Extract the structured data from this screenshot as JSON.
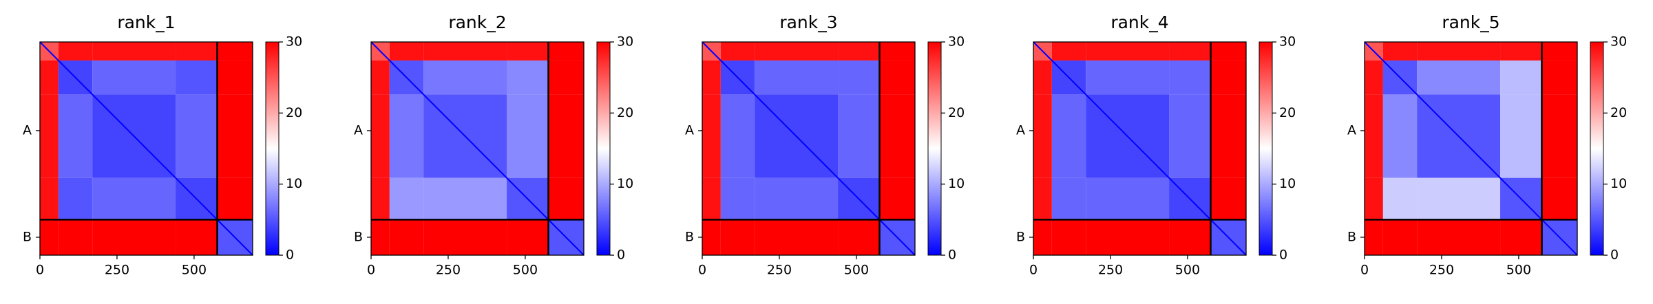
{
  "chart_data": [
    {
      "type": "heatmap",
      "title": "rank_1",
      "xlim": [
        0,
        690
      ],
      "xticks": [
        0,
        250,
        500
      ],
      "yticks": [
        {
          "value": 287,
          "label": "A"
        },
        {
          "value": 632,
          "label": "B"
        }
      ],
      "chain_breaks": [
        575
      ],
      "bins": [
        0,
        60,
        170,
        440,
        575,
        690
      ],
      "values": [
        [
          25,
          29,
          29,
          29,
          30
        ],
        [
          29,
          4,
          6,
          5,
          30
        ],
        [
          29,
          6,
          4,
          6,
          30
        ],
        [
          29,
          5,
          6,
          4,
          30
        ],
        [
          30,
          30,
          30,
          30,
          5
        ]
      ],
      "clim": [
        0,
        30
      ],
      "cticks": [
        0,
        10,
        20,
        30
      ]
    },
    {
      "type": "heatmap",
      "title": "rank_2",
      "xlim": [
        0,
        690
      ],
      "xticks": [
        0,
        250,
        500
      ],
      "yticks": [
        {
          "value": 287,
          "label": "A"
        },
        {
          "value": 632,
          "label": "B"
        }
      ],
      "chain_breaks": [
        575
      ],
      "bins": [
        0,
        60,
        170,
        440,
        575,
        690
      ],
      "values": [
        [
          25,
          29,
          29,
          29,
          30
        ],
        [
          29,
          5,
          7,
          8,
          30
        ],
        [
          29,
          7,
          5,
          8,
          30
        ],
        [
          29,
          9,
          9,
          5,
          30
        ],
        [
          30,
          30,
          30,
          30,
          5
        ]
      ],
      "clim": [
        0,
        30
      ],
      "cticks": [
        0,
        10,
        20,
        30
      ]
    },
    {
      "type": "heatmap",
      "title": "rank_3",
      "xlim": [
        0,
        690
      ],
      "xticks": [
        0,
        250,
        500
      ],
      "yticks": [
        {
          "value": 287,
          "label": "A"
        },
        {
          "value": 632,
          "label": "B"
        }
      ],
      "chain_breaks": [
        575
      ],
      "bins": [
        0,
        60,
        170,
        440,
        575,
        690
      ],
      "values": [
        [
          25,
          29,
          29,
          29,
          30
        ],
        [
          29,
          4,
          6,
          6,
          30
        ],
        [
          29,
          6,
          4,
          6,
          30
        ],
        [
          29,
          6,
          6,
          4,
          30
        ],
        [
          30,
          30,
          30,
          30,
          5
        ]
      ],
      "clim": [
        0,
        30
      ],
      "cticks": [
        0,
        10,
        20,
        30
      ]
    },
    {
      "type": "heatmap",
      "title": "rank_4",
      "xlim": [
        0,
        690
      ],
      "xticks": [
        0,
        250,
        500
      ],
      "yticks": [
        {
          "value": 287,
          "label": "A"
        },
        {
          "value": 632,
          "label": "B"
        }
      ],
      "chain_breaks": [
        575
      ],
      "bins": [
        0,
        60,
        170,
        440,
        575,
        690
      ],
      "values": [
        [
          25,
          29,
          29,
          29,
          30
        ],
        [
          29,
          4,
          6,
          6,
          30
        ],
        [
          29,
          6,
          4,
          6,
          30
        ],
        [
          29,
          6,
          6,
          4,
          30
        ],
        [
          30,
          30,
          30,
          30,
          5
        ]
      ],
      "clim": [
        0,
        30
      ],
      "cticks": [
        0,
        10,
        20,
        30
      ]
    },
    {
      "type": "heatmap",
      "title": "rank_5",
      "xlim": [
        0,
        690
      ],
      "xticks": [
        0,
        250,
        500
      ],
      "yticks": [
        {
          "value": 287,
          "label": "A"
        },
        {
          "value": 632,
          "label": "B"
        }
      ],
      "chain_breaks": [
        575
      ],
      "bins": [
        0,
        60,
        170,
        440,
        575,
        690
      ],
      "values": [
        [
          25,
          29,
          29,
          29,
          30
        ],
        [
          29,
          5,
          8,
          11,
          30
        ],
        [
          29,
          8,
          5,
          11,
          30
        ],
        [
          29,
          12,
          12,
          5,
          30
        ],
        [
          30,
          30,
          30,
          30,
          5
        ]
      ],
      "clim": [
        0,
        30
      ],
      "cticks": [
        0,
        10,
        20,
        30
      ]
    }
  ]
}
